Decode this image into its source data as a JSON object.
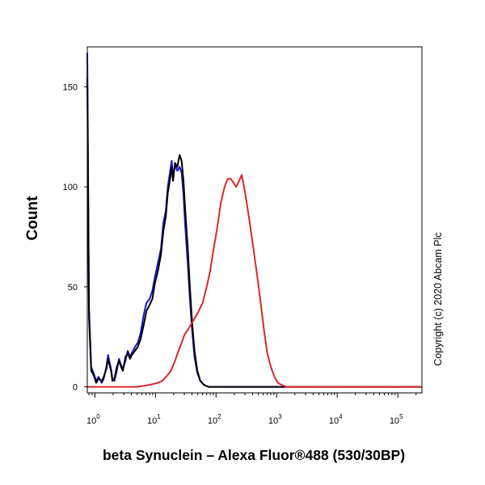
{
  "chart_data": {
    "type": "line",
    "xlabel": "beta Synuclein – Alexa Fluor®488 (530/30BP)",
    "ylabel": "Count",
    "copyright": "Copyright (c) 2020 Abcam Plc",
    "x_scale": "log",
    "xlim": [
      0.75,
      250000
    ],
    "ylim": [
      -3,
      170
    ],
    "x_ticks": [
      {
        "base": "10",
        "exp": "0"
      },
      {
        "base": "10",
        "exp": "1"
      },
      {
        "base": "10",
        "exp": "2"
      },
      {
        "base": "10",
        "exp": "3"
      },
      {
        "base": "10",
        "exp": "4"
      },
      {
        "base": "10",
        "exp": "5"
      }
    ],
    "y_ticks": [
      "0",
      "50",
      "100",
      "150"
    ],
    "legend": "none",
    "grid": false,
    "series": [
      {
        "color": "#1414c8",
        "points": [
          [
            0.75,
            167
          ],
          [
            0.8,
            40
          ],
          [
            0.87,
            10
          ],
          [
            0.95,
            7
          ],
          [
            1.05,
            3
          ],
          [
            1.15,
            5
          ],
          [
            1.3,
            2
          ],
          [
            1.4,
            4
          ],
          [
            1.55,
            10
          ],
          [
            1.65,
            16
          ],
          [
            1.75,
            12
          ],
          [
            1.85,
            9
          ],
          [
            1.95,
            4
          ],
          [
            2.1,
            3
          ],
          [
            2.3,
            8
          ],
          [
            2.5,
            14
          ],
          [
            2.7,
            11
          ],
          [
            2.9,
            9
          ],
          [
            3.2,
            13
          ],
          [
            3.5,
            18
          ],
          [
            3.8,
            15
          ],
          [
            4.1,
            17
          ],
          [
            4.6,
            20
          ],
          [
            5.1,
            22
          ],
          [
            5.7,
            27
          ],
          [
            6.4,
            36
          ],
          [
            7.1,
            42
          ],
          [
            8.0,
            44
          ],
          [
            8.9,
            48
          ],
          [
            9.8,
            55
          ],
          [
            11,
            62
          ],
          [
            12.3,
            69
          ],
          [
            13.5,
            82
          ],
          [
            14.8,
            88
          ],
          [
            16,
            100
          ],
          [
            17.5,
            108
          ],
          [
            18.5,
            113
          ],
          [
            19.5,
            105
          ],
          [
            21,
            111
          ],
          [
            23,
            108
          ],
          [
            25,
            110
          ],
          [
            27,
            107
          ],
          [
            29,
            96
          ],
          [
            31,
            80
          ],
          [
            34,
            62
          ],
          [
            37,
            44
          ],
          [
            40,
            29
          ],
          [
            44,
            15
          ],
          [
            49,
            7
          ],
          [
            55,
            3
          ],
          [
            63,
            1
          ],
          [
            75,
            0
          ],
          [
            90,
            0
          ],
          [
            120,
            0
          ],
          [
            250000,
            0
          ]
        ]
      },
      {
        "color": "#000000",
        "points": [
          [
            0.75,
            155
          ],
          [
            0.8,
            35
          ],
          [
            0.87,
            8
          ],
          [
            0.95,
            6
          ],
          [
            1.05,
            2
          ],
          [
            1.15,
            4
          ],
          [
            1.3,
            3
          ],
          [
            1.4,
            5
          ],
          [
            1.55,
            9
          ],
          [
            1.65,
            14
          ],
          [
            1.75,
            11
          ],
          [
            1.85,
            8
          ],
          [
            1.95,
            3
          ],
          [
            2.1,
            4
          ],
          [
            2.3,
            10
          ],
          [
            2.5,
            13
          ],
          [
            2.7,
            10
          ],
          [
            2.9,
            8
          ],
          [
            3.2,
            15
          ],
          [
            3.5,
            17
          ],
          [
            3.8,
            14
          ],
          [
            4.1,
            16
          ],
          [
            4.6,
            18
          ],
          [
            5.1,
            20
          ],
          [
            5.7,
            24
          ],
          [
            6.4,
            31
          ],
          [
            7.1,
            38
          ],
          [
            8.0,
            41
          ],
          [
            8.9,
            44
          ],
          [
            9.8,
            52
          ],
          [
            11,
            58
          ],
          [
            12.3,
            66
          ],
          [
            13.5,
            78
          ],
          [
            14.8,
            85
          ],
          [
            16,
            97
          ],
          [
            17.5,
            104
          ],
          [
            18.5,
            110
          ],
          [
            19.5,
            103
          ],
          [
            21,
            112
          ],
          [
            23,
            110
          ],
          [
            25,
            116
          ],
          [
            27,
            113
          ],
          [
            29,
            103
          ],
          [
            31,
            88
          ],
          [
            34,
            70
          ],
          [
            37,
            50
          ],
          [
            40,
            33
          ],
          [
            44,
            18
          ],
          [
            49,
            8
          ],
          [
            55,
            3
          ],
          [
            63,
            1
          ],
          [
            75,
            0
          ],
          [
            90,
            0
          ],
          [
            120,
            0
          ],
          [
            250000,
            0
          ]
        ]
      },
      {
        "color": "#dc2828",
        "points": [
          [
            0.75,
            0
          ],
          [
            5,
            0
          ],
          [
            8,
            1
          ],
          [
            11,
            2
          ],
          [
            13,
            3
          ],
          [
            15,
            5
          ],
          [
            18,
            8
          ],
          [
            21,
            13
          ],
          [
            24,
            18
          ],
          [
            27,
            22
          ],
          [
            30,
            26
          ],
          [
            35,
            29
          ],
          [
            42,
            33
          ],
          [
            50,
            37
          ],
          [
            60,
            42
          ],
          [
            70,
            50
          ],
          [
            80,
            58
          ],
          [
            90,
            68
          ],
          [
            105,
            80
          ],
          [
            120,
            92
          ],
          [
            138,
            100
          ],
          [
            155,
            104
          ],
          [
            175,
            104
          ],
          [
            195,
            102
          ],
          [
            215,
            100
          ],
          [
            240,
            103
          ],
          [
            265,
            106
          ],
          [
            290,
            100
          ],
          [
            320,
            92
          ],
          [
            360,
            82
          ],
          [
            410,
            70
          ],
          [
            470,
            57
          ],
          [
            540,
            43
          ],
          [
            620,
            28
          ],
          [
            700,
            17
          ],
          [
            800,
            10
          ],
          [
            920,
            5
          ],
          [
            1050,
            2
          ],
          [
            1200,
            1
          ],
          [
            1450,
            0
          ],
          [
            2000,
            0
          ],
          [
            250000,
            0
          ]
        ]
      }
    ]
  }
}
